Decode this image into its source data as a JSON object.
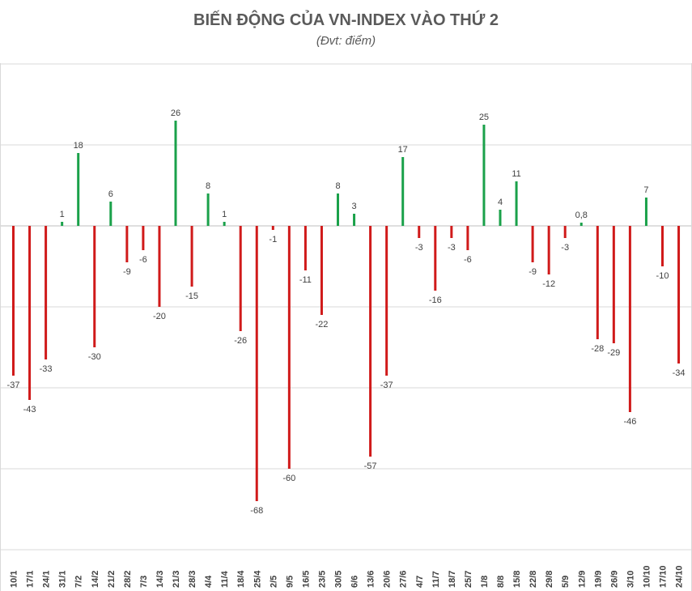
{
  "title": "BIẾN ĐỘNG CỦA VN-INDEX VÀO THỨ 2",
  "subtitle": "(Đvt: điểm)",
  "colors": {
    "positive": "#1aa14a",
    "negative": "#d01a1a",
    "grid": "#d9d9d9"
  },
  "chart_data": {
    "type": "bar",
    "title": "BIẾN ĐỘNG CỦA VN-INDEX VÀO THỨ 2",
    "subtitle": "(Đvt: điểm)",
    "xlabel": "",
    "ylabel": "",
    "ylim": [
      -80,
      40
    ],
    "grid": true,
    "legend": "none",
    "categories": [
      "10/1",
      "17/1",
      "24/1",
      "31/1",
      "7/2",
      "14/2",
      "21/2",
      "28/2",
      "7/3",
      "14/3",
      "21/3",
      "28/3",
      "4/4",
      "11/4",
      "18/4",
      "25/4",
      "2/5",
      "9/5",
      "16/5",
      "23/5",
      "30/5",
      "6/6",
      "13/6",
      "20/6",
      "27/6",
      "4/7",
      "11/7",
      "18/7",
      "25/7",
      "1/8",
      "8/8",
      "15/8",
      "22/8",
      "29/8",
      "5/9",
      "12/9",
      "19/9",
      "26/9",
      "3/10",
      "10/10",
      "17/10",
      "24/10"
    ],
    "values": [
      -37,
      -43,
      -33,
      1,
      18,
      -30,
      6,
      -9,
      -6,
      -20,
      26,
      -15,
      8,
      1,
      -26,
      -68,
      -1,
      -60,
      -11,
      -22,
      8,
      3,
      -57,
      -37,
      17,
      -3,
      -16,
      -3,
      -6,
      25,
      4,
      11,
      -9,
      -12,
      -3,
      0.8,
      -28,
      -29,
      -46,
      7,
      -10,
      -34
    ],
    "data_labels": [
      "-37",
      "-43",
      "-33",
      "1",
      "18",
      "-30",
      "6",
      "-9",
      "-6",
      "-20",
      "26",
      "-15",
      "8",
      "1",
      "-26",
      "-68",
      "-1",
      "-60",
      "-11",
      "-22",
      "8",
      "3",
      "-57",
      "-37",
      "17",
      "-3",
      "-16",
      "-3",
      "-6",
      "25",
      "4",
      "11",
      "-9",
      "-12",
      "-3",
      "0,8",
      "-28",
      "-29",
      "-46",
      "7",
      "-10",
      "-34"
    ]
  }
}
